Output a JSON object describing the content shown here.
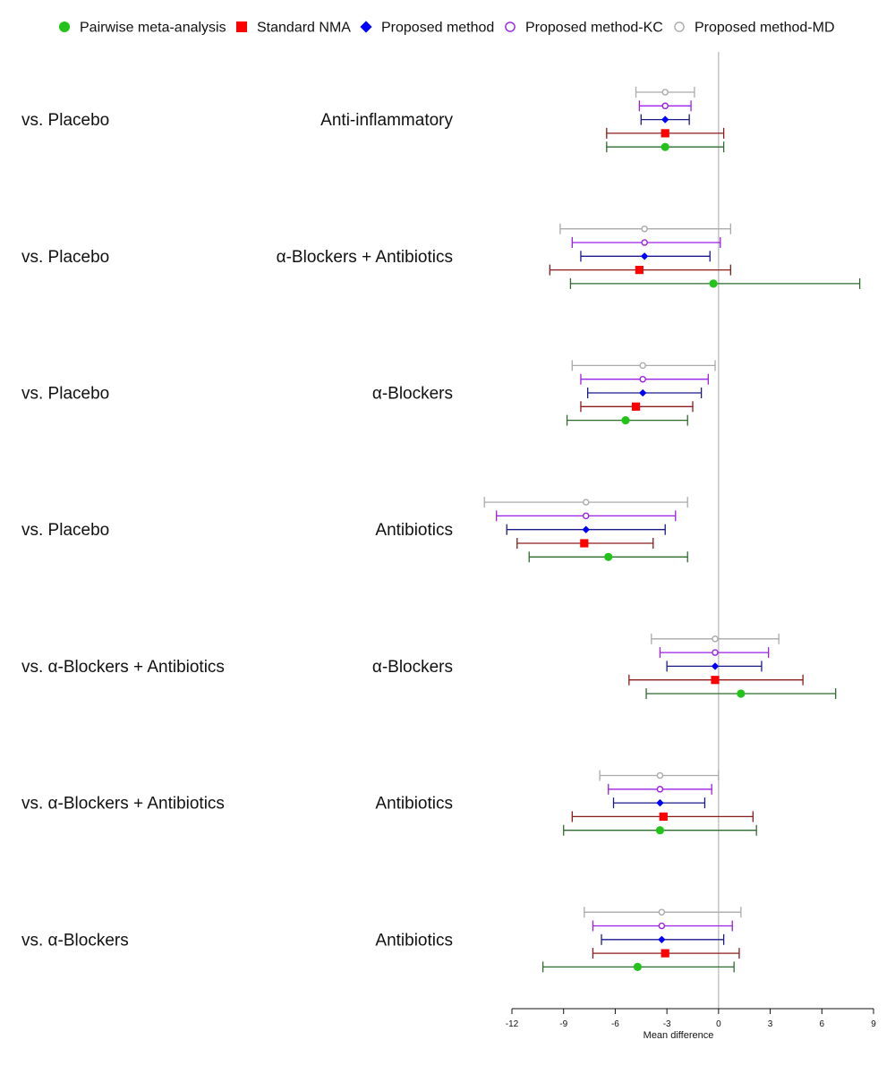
{
  "chart_data": {
    "type": "forest",
    "title": "",
    "xlabel": "Mean difference",
    "xlim": [
      -12,
      9
    ],
    "xticks": [
      -12,
      -9,
      -6,
      -3,
      0,
      3,
      6,
      9
    ],
    "xtick_labels": [
      "-12",
      "-9",
      "-6",
      "-3",
      "0",
      "3",
      "6",
      "9"
    ],
    "reference_line": 0,
    "legend_position": "top",
    "methods": [
      {
        "key": "pairwise",
        "name": "Pairwise meta-analysis",
        "marker": "filled-circle",
        "marker_color": "#22c41a",
        "ci_color": "#2e6b2e"
      },
      {
        "key": "nma",
        "name": "Standard NMA",
        "marker": "filled-square",
        "marker_color": "#ff0000",
        "ci_color": "#8b1a1a"
      },
      {
        "key": "proposed",
        "name": "Proposed method",
        "marker": "filled-diamond",
        "marker_color": "#0000ff",
        "ci_color": "#1a1a8b"
      },
      {
        "key": "kc",
        "name": "Proposed method-KC",
        "marker": "open-circle",
        "marker_color": "#9b1fe8",
        "ci_color": "#9b1fe8"
      },
      {
        "key": "md",
        "name": "Proposed method-MD",
        "marker": "open-circle",
        "marker_color": "#aaaaaa",
        "ci_color": "#aaaaaa"
      }
    ],
    "comparisons": [
      {
        "comparator": "vs. Placebo",
        "treatment": "Anti-inflammatory",
        "estimates": {
          "md": {
            "est": -3.1,
            "lo": -4.8,
            "hi": -1.4
          },
          "kc": {
            "est": -3.1,
            "lo": -4.6,
            "hi": -1.6
          },
          "proposed": {
            "est": -3.1,
            "lo": -4.5,
            "hi": -1.7
          },
          "nma": {
            "est": -3.1,
            "lo": -6.5,
            "hi": 0.3
          },
          "pairwise": {
            "est": -3.1,
            "lo": -6.5,
            "hi": 0.3
          }
        }
      },
      {
        "comparator": "vs. Placebo",
        "treatment": "α-Blockers + Antibiotics",
        "estimates": {
          "md": {
            "est": -4.3,
            "lo": -9.2,
            "hi": 0.7
          },
          "kc": {
            "est": -4.3,
            "lo": -8.5,
            "hi": 0.1
          },
          "proposed": {
            "est": -4.3,
            "lo": -8.0,
            "hi": -0.5
          },
          "nma": {
            "est": -4.6,
            "lo": -9.8,
            "hi": 0.7
          },
          "pairwise": {
            "est": -0.3,
            "lo": -8.6,
            "hi": 8.2
          }
        }
      },
      {
        "comparator": "vs. Placebo",
        "treatment": "α-Blockers",
        "estimates": {
          "md": {
            "est": -4.4,
            "lo": -8.5,
            "hi": -0.2
          },
          "kc": {
            "est": -4.4,
            "lo": -8.0,
            "hi": -0.6
          },
          "proposed": {
            "est": -4.4,
            "lo": -7.6,
            "hi": -1.0
          },
          "nma": {
            "est": -4.8,
            "lo": -8.0,
            "hi": -1.5
          },
          "pairwise": {
            "est": -5.4,
            "lo": -8.8,
            "hi": -1.8
          }
        }
      },
      {
        "comparator": "vs. Placebo",
        "treatment": "Antibiotics",
        "estimates": {
          "md": {
            "est": -7.7,
            "lo": -13.6,
            "hi": -1.8
          },
          "kc": {
            "est": -7.7,
            "lo": -12.9,
            "hi": -2.5
          },
          "proposed": {
            "est": -7.7,
            "lo": -12.3,
            "hi": -3.1
          },
          "nma": {
            "est": -7.8,
            "lo": -11.7,
            "hi": -3.8
          },
          "pairwise": {
            "est": -6.4,
            "lo": -11.0,
            "hi": -1.8
          }
        }
      },
      {
        "comparator": "vs. α-Blockers + Antibiotics",
        "treatment": "α-Blockers",
        "estimates": {
          "md": {
            "est": -0.2,
            "lo": -3.9,
            "hi": 3.5
          },
          "kc": {
            "est": -0.2,
            "lo": -3.4,
            "hi": 2.9
          },
          "proposed": {
            "est": -0.2,
            "lo": -3.0,
            "hi": 2.5
          },
          "nma": {
            "est": -0.2,
            "lo": -5.2,
            "hi": 4.9
          },
          "pairwise": {
            "est": 1.3,
            "lo": -4.2,
            "hi": 6.8
          }
        }
      },
      {
        "comparator": "vs. α-Blockers + Antibiotics",
        "treatment": "Antibiotics",
        "estimates": {
          "md": {
            "est": -3.4,
            "lo": -6.9,
            "hi": 0.0
          },
          "kc": {
            "est": -3.4,
            "lo": -6.4,
            "hi": -0.4
          },
          "proposed": {
            "est": -3.4,
            "lo": -6.1,
            "hi": -0.8
          },
          "nma": {
            "est": -3.2,
            "lo": -8.5,
            "hi": 2.0
          },
          "pairwise": {
            "est": -3.4,
            "lo": -9.0,
            "hi": 2.2
          }
        }
      },
      {
        "comparator": "vs. α-Blockers",
        "treatment": "Antibiotics",
        "estimates": {
          "md": {
            "est": -3.3,
            "lo": -7.8,
            "hi": 1.3
          },
          "kc": {
            "est": -3.3,
            "lo": -7.3,
            "hi": 0.8
          },
          "proposed": {
            "est": -3.3,
            "lo": -6.8,
            "hi": 0.3
          },
          "nma": {
            "est": -3.1,
            "lo": -7.3,
            "hi": 1.2
          },
          "pairwise": {
            "est": -4.7,
            "lo": -10.2,
            "hi": 0.9
          }
        }
      }
    ]
  }
}
